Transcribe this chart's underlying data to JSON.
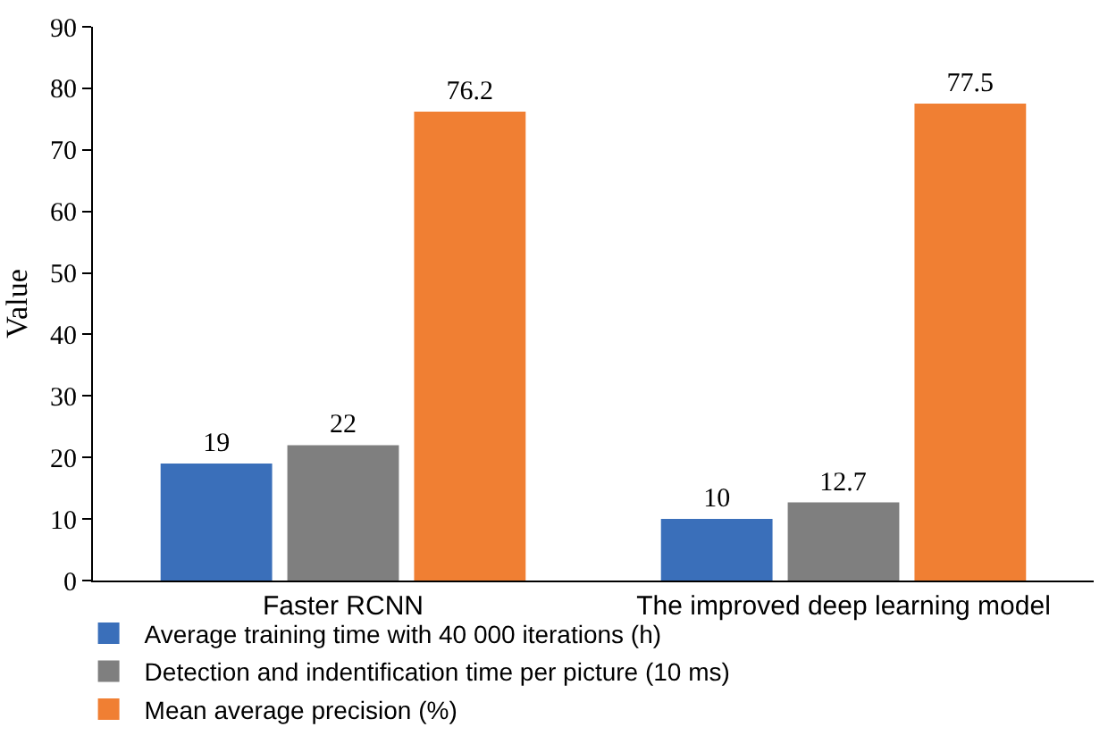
{
  "chart_data": {
    "type": "bar",
    "ylabel": "Value",
    "categories": [
      "Faster RCNN",
      "The improved deep learning model"
    ],
    "series": [
      {
        "name": "Average training time with 40 000 iterations (h)",
        "color": "#3a6fba",
        "values": [
          19,
          10
        ]
      },
      {
        "name": "Detection and indentification time per picture (10 ms)",
        "color": "#7f7f7f",
        "values": [
          22,
          12.7
        ]
      },
      {
        "name": "Mean average precision (%)",
        "color": "#f07f33",
        "values": [
          76.2,
          77.5
        ]
      }
    ],
    "ylim": [
      0,
      90
    ],
    "yticks": [
      0,
      10,
      20,
      30,
      40,
      50,
      60,
      70,
      80,
      90
    ],
    "data_labels": true,
    "legend": "bottom left"
  }
}
